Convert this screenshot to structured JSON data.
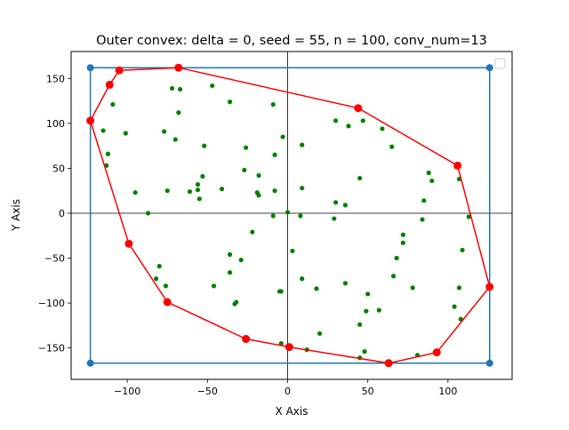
{
  "chart_data": {
    "type": "scatter",
    "title": "Outer convex: delta = 0, seed = 55, n = 100, conv_num=13",
    "xlabel": "X Axis",
    "ylabel": "Y Axis",
    "xlim": [
      -135,
      140
    ],
    "ylim": [
      -185,
      180
    ],
    "xticks": [
      -100,
      -50,
      0,
      50,
      100
    ],
    "yticks": [
      -150,
      -100,
      -50,
      0,
      50,
      100,
      150
    ],
    "grid": false,
    "legend": "top-right",
    "colors": {
      "points": "#008000",
      "hull": "#ff0000",
      "bbox": "#1f77b4",
      "axes": "#000000"
    },
    "bounding_box": [
      [
        -123,
        162
      ],
      [
        126,
        162
      ],
      [
        126,
        -167
      ],
      [
        -123,
        -167
      ],
      [
        -123,
        162
      ]
    ],
    "hull": [
      [
        -123,
        103
      ],
      [
        -111,
        143
      ],
      [
        -105,
        159
      ],
      [
        -68,
        162
      ],
      [
        44,
        117
      ],
      [
        106,
        53
      ],
      [
        126,
        -82
      ],
      [
        93,
        -155
      ],
      [
        63,
        -167
      ],
      [
        1,
        -149
      ],
      [
        -26,
        -140
      ],
      [
        -75,
        -99
      ],
      [
        -99,
        -34
      ],
      [
        -123,
        103
      ]
    ],
    "points": [
      [
        -72,
        139
      ],
      [
        -67,
        138
      ],
      [
        -47,
        142
      ],
      [
        -36,
        124
      ],
      [
        -9,
        121
      ],
      [
        -68,
        112
      ],
      [
        -109,
        121
      ],
      [
        -115,
        92
      ],
      [
        -101,
        89
      ],
      [
        -77,
        91
      ],
      [
        -70,
        82
      ],
      [
        -52,
        75
      ],
      [
        -26,
        73
      ],
      [
        -3,
        85
      ],
      [
        9,
        76
      ],
      [
        30,
        103
      ],
      [
        38,
        97
      ],
      [
        47,
        103
      ],
      [
        59,
        94
      ],
      [
        65,
        74
      ],
      [
        -112,
        66
      ],
      [
        -113,
        53
      ],
      [
        -53,
        41
      ],
      [
        -27,
        48
      ],
      [
        -18,
        42
      ],
      [
        -8,
        65
      ],
      [
        88,
        45
      ],
      [
        90,
        36
      ],
      [
        105,
        52
      ],
      [
        107,
        38
      ],
      [
        -95,
        23
      ],
      [
        -75,
        25
      ],
      [
        -61,
        24
      ],
      [
        -56,
        32
      ],
      [
        -56,
        26
      ],
      [
        -55,
        16
      ],
      [
        -41,
        27
      ],
      [
        -19,
        23
      ],
      [
        -18,
        20
      ],
      [
        -8,
        25
      ],
      [
        9,
        28
      ],
      [
        30,
        12
      ],
      [
        36,
        9
      ],
      [
        45,
        39
      ],
      [
        85,
        14
      ],
      [
        -87,
        0
      ],
      [
        -9,
        -3
      ],
      [
        0,
        1
      ],
      [
        8,
        -3
      ],
      [
        29,
        -6
      ],
      [
        84,
        -7
      ],
      [
        113,
        -4
      ],
      [
        -22,
        -21
      ],
      [
        72,
        -24
      ],
      [
        72,
        -33
      ],
      [
        109,
        -41
      ],
      [
        -36,
        -46
      ],
      [
        -29,
        -52
      ],
      [
        68,
        -50
      ],
      [
        -80,
        -59
      ],
      [
        -82,
        -73
      ],
      [
        -76,
        -81
      ],
      [
        -36,
        -66
      ],
      [
        -46,
        -81
      ],
      [
        3,
        -42
      ],
      [
        9,
        -73
      ],
      [
        18,
        -84
      ],
      [
        36,
        -78
      ],
      [
        50,
        -90
      ],
      [
        66,
        -70
      ],
      [
        78,
        -83
      ],
      [
        107,
        -83
      ],
      [
        -33,
        -101
      ],
      [
        -32,
        -99
      ],
      [
        -5,
        -87
      ],
      [
        -4,
        -87
      ],
      [
        49,
        -109
      ],
      [
        57,
        -108
      ],
      [
        104,
        -104
      ],
      [
        108,
        -118
      ],
      [
        -4,
        -145
      ],
      [
        12,
        -152
      ],
      [
        20,
        -134
      ],
      [
        45,
        -124
      ],
      [
        48,
        -154
      ],
      [
        45,
        -161
      ],
      [
        81,
        -158
      ]
    ]
  }
}
